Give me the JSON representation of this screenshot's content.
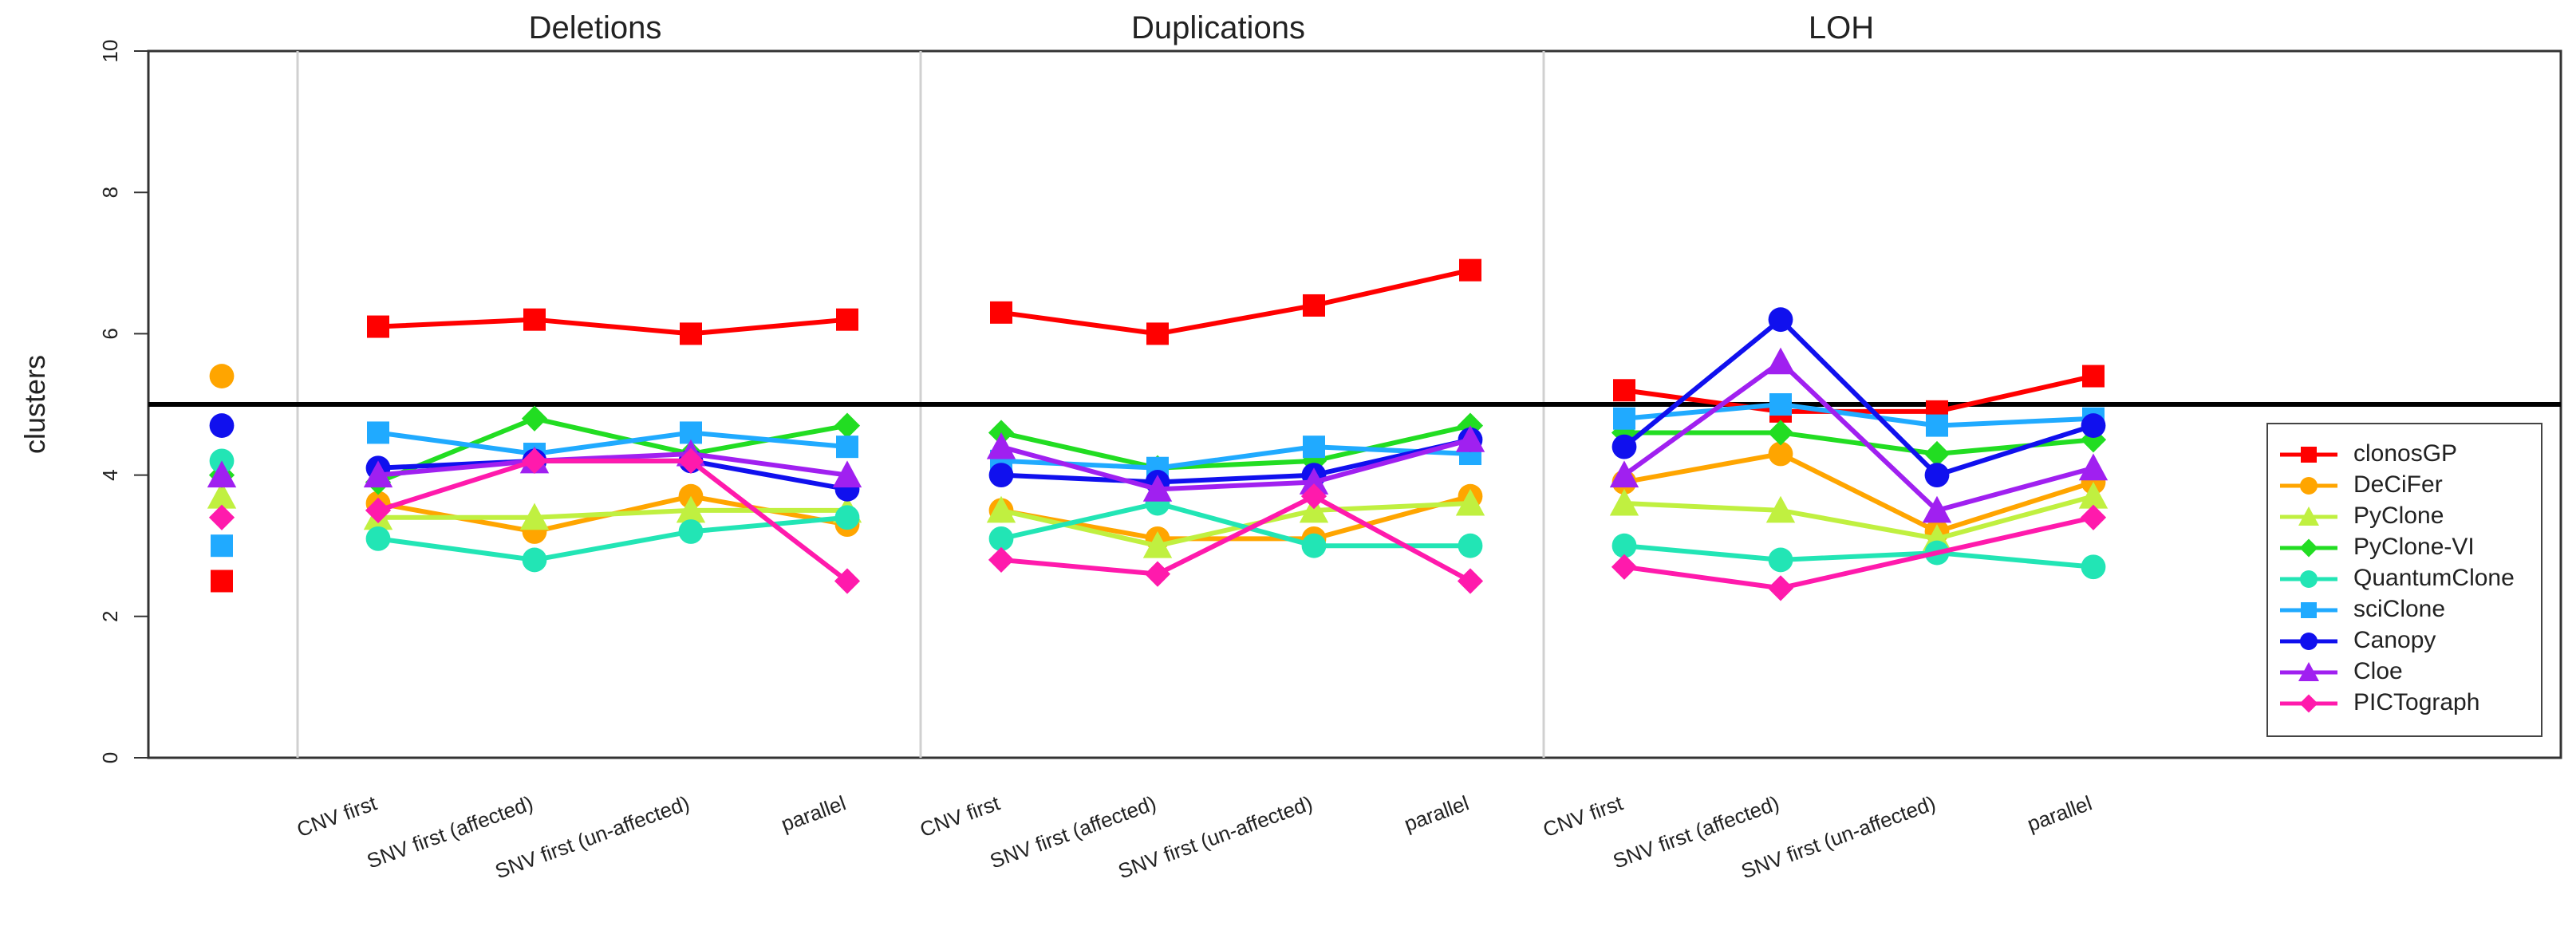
{
  "chart_data": {
    "type": "line",
    "ylabel": "clusters",
    "ylim": [
      0,
      10
    ],
    "yticks": [
      0,
      2,
      4,
      6,
      8,
      10
    ],
    "panels": [
      "Deletions",
      "Duplications",
      "LOH"
    ],
    "categories": [
      "CNV first",
      "SNV first (affected)",
      "SNV first (un-affected)",
      "parallel"
    ],
    "reference_line": 5,
    "baseline_label": "",
    "series": [
      {
        "name": "clonosGP",
        "color": "#ff0000",
        "marker": "square",
        "baseline": 2.5,
        "values": [
          [
            6.1,
            6.2,
            6.0,
            6.2
          ],
          [
            6.3,
            6.0,
            6.4,
            6.9
          ],
          [
            5.2,
            4.9,
            4.9,
            5.4
          ]
        ]
      },
      {
        "name": "DeCiFer",
        "color": "#ffa500",
        "marker": "circle",
        "baseline": 5.4,
        "values": [
          [
            3.6,
            3.2,
            3.7,
            3.3
          ],
          [
            3.5,
            3.1,
            3.1,
            3.7
          ],
          [
            3.9,
            4.3,
            3.2,
            3.9
          ]
        ]
      },
      {
        "name": "PyClone",
        "color": "#c0f040",
        "marker": "triangle",
        "baseline": 3.7,
        "values": [
          [
            3.4,
            3.4,
            3.5,
            3.5
          ],
          [
            3.5,
            3.0,
            3.5,
            3.6
          ],
          [
            3.6,
            3.5,
            3.1,
            3.7
          ]
        ]
      },
      {
        "name": "PyClone-VI",
        "color": "#22dd22",
        "marker": "diamond",
        "baseline": 4.0,
        "values": [
          [
            3.9,
            4.8,
            4.3,
            4.7
          ],
          [
            4.6,
            4.1,
            4.2,
            4.7
          ],
          [
            4.6,
            4.6,
            4.3,
            4.5
          ]
        ]
      },
      {
        "name": "QuantumClone",
        "color": "#22e5b5",
        "marker": "circle",
        "baseline": 4.2,
        "values": [
          [
            3.1,
            2.8,
            3.2,
            3.4
          ],
          [
            3.1,
            3.6,
            3.0,
            3.0
          ],
          [
            3.0,
            2.8,
            2.9,
            2.7
          ]
        ]
      },
      {
        "name": "sciClone",
        "color": "#20aaff",
        "marker": "square",
        "baseline": 3.0,
        "values": [
          [
            4.6,
            4.3,
            4.6,
            4.4
          ],
          [
            4.2,
            4.1,
            4.4,
            4.3
          ],
          [
            4.8,
            5.0,
            4.7,
            4.8
          ]
        ]
      },
      {
        "name": "Canopy",
        "color": "#1010ee",
        "marker": "circle",
        "baseline": 4.7,
        "values": [
          [
            4.1,
            4.2,
            4.2,
            3.8
          ],
          [
            4.0,
            3.9,
            4.0,
            4.5
          ],
          [
            4.4,
            6.2,
            4.0,
            4.7
          ]
        ]
      },
      {
        "name": "Cloe",
        "color": "#a020f0",
        "marker": "triangle",
        "baseline": 4.0,
        "values": [
          [
            4.0,
            4.2,
            4.3,
            4.0
          ],
          [
            4.4,
            3.8,
            3.9,
            4.5
          ],
          [
            4.0,
            5.6,
            3.5,
            4.1
          ]
        ]
      },
      {
        "name": "PICTograph",
        "color": "#ff1aac",
        "marker": "diamond",
        "baseline": 3.4,
        "values": [
          [
            3.5,
            4.2,
            4.2,
            2.5
          ],
          [
            2.8,
            2.6,
            3.7,
            2.5
          ],
          [
            2.7,
            2.4,
            null,
            3.4
          ]
        ]
      }
    ]
  }
}
